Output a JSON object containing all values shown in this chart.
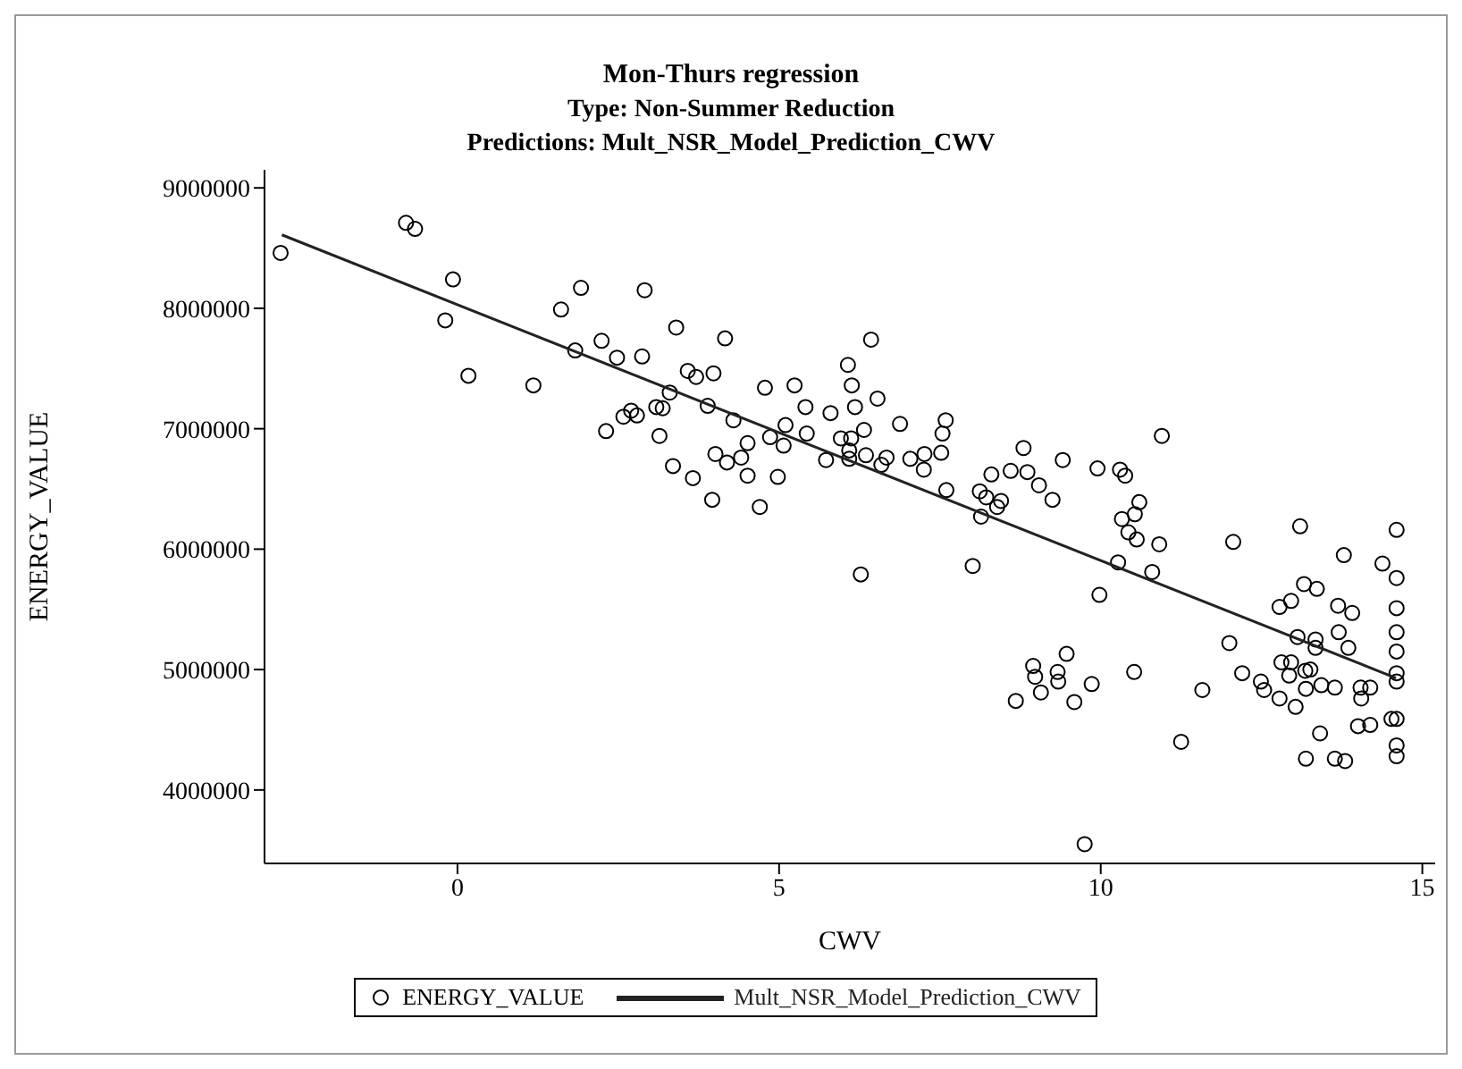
{
  "chart_data": {
    "type": "scatter",
    "title": "Mon-Thurs regression",
    "subtitle": "Type: Non-Summer Reduction\nPredictions: Mult_NSR_Model_Prediction_CWV",
    "xlabel": "CWV",
    "ylabel": "ENERGY_VALUE",
    "xlim": [
      -3,
      15.2
    ],
    "ylim": [
      3390000,
      9150000
    ],
    "xticks": [
      0,
      5,
      10,
      15
    ],
    "yticks": [
      4000000,
      5000000,
      6000000,
      7000000,
      8000000,
      9000000
    ],
    "legend": "bottom",
    "marker": "circle",
    "series": [
      {
        "name": "ENERGY_VALUE",
        "color": "#000000",
        "x": [
          -2.75,
          -0.8,
          -0.66,
          -0.07,
          -0.19,
          0.17,
          1.18,
          1.61,
          1.92,
          1.83,
          2.24,
          2.31,
          2.48,
          2.91,
          2.87,
          3.4,
          4.16,
          3.58,
          3.71,
          3.98,
          3.3,
          2.58,
          2.7,
          2.79,
          3.09,
          3.19,
          3.14,
          3.35,
          3.66,
          3.96,
          3.89,
          4.29,
          4.01,
          4.19,
          4.41,
          4.51,
          4.51,
          4.7,
          4.78,
          4.86,
          4.98,
          5.1,
          5.07,
          5.24,
          5.41,
          5.43,
          5.73,
          5.8,
          5.96,
          6.07,
          6.13,
          6.18,
          6.12,
          6.09,
          6.09,
          6.32,
          6.35,
          6.43,
          6.53,
          6.59,
          6.67,
          6.88,
          7.04,
          7.26,
          7.25,
          7.52,
          7.54,
          7.59,
          7.6,
          8.12,
          8.3,
          8.6,
          8.22,
          8.45,
          8.39,
          8.14,
          6.27,
          8.01,
          8.68,
          8.8,
          8.86,
          9.04,
          9.41,
          9.25,
          9.95,
          10.3,
          10.38,
          10.95,
          10.6,
          10.53,
          10.33,
          10.43,
          10.56,
          10.91,
          10.27,
          10.8,
          9.98,
          9.47,
          8.95,
          8.98,
          9.33,
          9.34,
          9.07,
          9.59,
          9.86,
          10.52,
          11.25,
          9.75,
          11.58,
          12.0,
          12.06,
          12.2,
          12.49,
          12.54,
          12.78,
          12.81,
          12.96,
          12.93,
          13.03,
          13.19,
          13.18,
          13.26,
          13.06,
          13.34,
          13.34,
          12.78,
          12.96,
          13.16,
          13.36,
          13.1,
          13.43,
          13.64,
          13.7,
          13.85,
          13.69,
          13.91,
          13.78,
          13.41,
          13.19,
          13.64,
          13.8,
          14.0,
          14.19,
          14.04,
          14.19,
          14.05,
          14.38,
          14.6,
          14.6,
          14.6,
          14.6,
          14.6,
          14.6,
          14.6,
          14.6,
          14.6,
          14.6,
          14.52
        ],
        "values": [
          8460000,
          8710000,
          8660000,
          8240000,
          7900000,
          7440000,
          7360000,
          7990000,
          8170000,
          7650000,
          7730000,
          6980000,
          7590000,
          8150000,
          7600000,
          7840000,
          7750000,
          7480000,
          7430000,
          7460000,
          7300000,
          7100000,
          7150000,
          7110000,
          7180000,
          7170000,
          6940000,
          6690000,
          6590000,
          6410000,
          7190000,
          7070000,
          6790000,
          6720000,
          6760000,
          6880000,
          6610000,
          6350000,
          7340000,
          6930000,
          6600000,
          7030000,
          6860000,
          7360000,
          7180000,
          6960000,
          6740000,
          7130000,
          6920000,
          7530000,
          7360000,
          7180000,
          6920000,
          6820000,
          6750000,
          6990000,
          6780000,
          7740000,
          7250000,
          6700000,
          6760000,
          7040000,
          6750000,
          6790000,
          6660000,
          6800000,
          6960000,
          7070000,
          6490000,
          6480000,
          6620000,
          6650000,
          6430000,
          6400000,
          6350000,
          6270000,
          5790000,
          5860000,
          4740000,
          6840000,
          6640000,
          6530000,
          6740000,
          6410000,
          6670000,
          6660000,
          6610000,
          6940000,
          6390000,
          6290000,
          6250000,
          6140000,
          6080000,
          6040000,
          5890000,
          5810000,
          5620000,
          5130000,
          5030000,
          4940000,
          4980000,
          4900000,
          4810000,
          4730000,
          4880000,
          4980000,
          4400000,
          3550000,
          4830000,
          5220000,
          6060000,
          4970000,
          4900000,
          4830000,
          4760000,
          5060000,
          5060000,
          4950000,
          4690000,
          4840000,
          4990000,
          5000000,
          5270000,
          5250000,
          5180000,
          5520000,
          5570000,
          5710000,
          5670000,
          6190000,
          4870000,
          4850000,
          5310000,
          5180000,
          5530000,
          5470000,
          5950000,
          4470000,
          4260000,
          4260000,
          4240000,
          4530000,
          4540000,
          4850000,
          4850000,
          4760000,
          5880000,
          6160000,
          5760000,
          5510000,
          5310000,
          5150000,
          4970000,
          4900000,
          4590000,
          4370000,
          4280000,
          4590000
        ]
      },
      {
        "name": "Mult_NSR_Model_Prediction_CWV",
        "type": "line",
        "marker": "none",
        "color": "#222222",
        "x": [
          -2.73,
          14.59
        ],
        "values": [
          8610000,
          4930000
        ]
      }
    ]
  }
}
